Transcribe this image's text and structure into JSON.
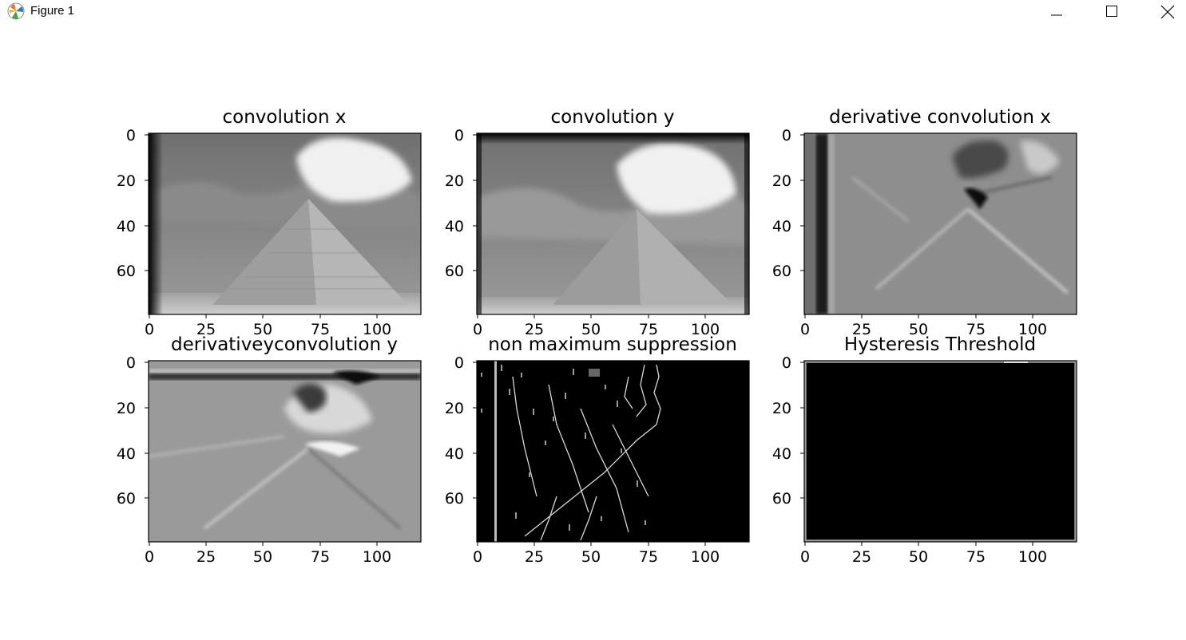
{
  "window": {
    "title": "Figure 1",
    "icon": "matplotlib-icon",
    "controls": [
      "minimize-icon",
      "maximize-icon",
      "close-icon"
    ]
  },
  "figure": {
    "subplots": [
      {
        "title": "convolution x",
        "xticks": [
          "0",
          "25",
          "50",
          "75",
          "100"
        ],
        "yticks": [
          "0",
          "20",
          "40",
          "60"
        ]
      },
      {
        "title": "convolution y",
        "xticks": [
          "0",
          "25",
          "50",
          "75",
          "100"
        ],
        "yticks": [
          "0",
          "20",
          "40",
          "60"
        ]
      },
      {
        "title": "derivative convolution x",
        "xticks": [
          "0",
          "25",
          "50",
          "75",
          "100"
        ],
        "yticks": [
          "0",
          "20",
          "40",
          "60"
        ]
      },
      {
        "title": "derivativeyconvolution y",
        "xticks": [
          "0",
          "25",
          "50",
          "75",
          "100"
        ],
        "yticks": [
          "0",
          "20",
          "40",
          "60"
        ]
      },
      {
        "title": "non maximum suppression",
        "xticks": [
          "0",
          "25",
          "50",
          "75",
          "100"
        ],
        "yticks": [
          "0",
          "20",
          "40",
          "60"
        ]
      },
      {
        "title": "Hysteresis Threshold",
        "xticks": [
          "0",
          "25",
          "50",
          "75",
          "100"
        ],
        "yticks": [
          "0",
          "20",
          "40",
          "60"
        ]
      }
    ]
  },
  "chart_data": [
    {
      "type": "heatmap",
      "title": "convolution x",
      "colormap": "gray",
      "xlim": [
        0,
        120
      ],
      "ylim": [
        80,
        0
      ]
    },
    {
      "type": "heatmap",
      "title": "convolution y",
      "colormap": "gray",
      "xlim": [
        0,
        120
      ],
      "ylim": [
        80,
        0
      ]
    },
    {
      "type": "heatmap",
      "title": "derivative convolution x",
      "colormap": "gray",
      "xlim": [
        0,
        120
      ],
      "ylim": [
        80,
        0
      ]
    },
    {
      "type": "heatmap",
      "title": "derivativeyconvolution y",
      "colormap": "gray",
      "xlim": [
        0,
        120
      ],
      "ylim": [
        80,
        0
      ]
    },
    {
      "type": "heatmap",
      "title": "non maximum suppression",
      "colormap": "gray",
      "xlim": [
        0,
        120
      ],
      "ylim": [
        80,
        0
      ]
    },
    {
      "type": "heatmap",
      "title": "Hysteresis Threshold",
      "colormap": "gray",
      "xlim": [
        0,
        120
      ],
      "ylim": [
        80,
        0
      ]
    }
  ]
}
